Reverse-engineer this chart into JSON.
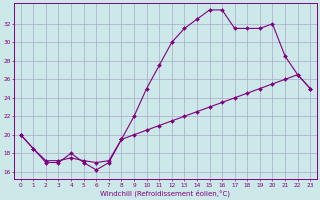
{
  "xlabel": "Windchill (Refroidissement éolien,°C)",
  "background_color": "#cce8e8",
  "line_color": "#800080",
  "grid_color": "#aaaacc",
  "x_ticks": [
    0,
    1,
    2,
    3,
    4,
    5,
    6,
    7,
    8,
    9,
    10,
    11,
    12,
    13,
    14,
    15,
    16,
    17,
    18,
    19,
    20,
    21,
    22,
    23
  ],
  "y_ticks": [
    16,
    18,
    20,
    22,
    24,
    26,
    28,
    30,
    32
  ],
  "ylim": [
    15.2,
    34.2
  ],
  "xlim": [
    -0.5,
    23.5
  ],
  "series1_x": [
    0,
    1,
    2,
    3,
    4,
    5,
    6,
    7,
    8,
    9,
    10,
    11,
    12,
    13,
    14,
    15,
    16,
    17,
    18,
    19,
    20,
    21,
    22,
    23
  ],
  "series1_y": [
    20.0,
    18.5,
    17.0,
    17.0,
    18.0,
    17.0,
    16.2,
    17.0,
    19.5,
    22.0,
    25.0,
    27.5,
    30.0,
    31.5,
    32.5,
    33.5,
    33.5,
    31.5,
    31.5,
    31.5,
    32.0,
    28.5,
    26.5,
    25.0
  ],
  "series2_x": [
    0,
    1,
    2,
    3,
    4,
    5,
    6,
    7,
    8,
    9,
    10,
    11,
    12,
    13,
    14,
    15,
    16,
    17,
    18,
    19,
    20,
    21,
    22,
    23
  ],
  "series2_y": [
    20.0,
    18.5,
    17.2,
    17.2,
    17.5,
    17.2,
    17.0,
    17.2,
    19.5,
    20.0,
    20.5,
    21.0,
    21.5,
    22.0,
    22.5,
    23.0,
    23.5,
    24.0,
    24.5,
    25.0,
    25.5,
    26.0,
    26.5,
    25.0
  ],
  "marker_size": 2.0,
  "line_width": 0.8,
  "tick_fontsize": 4.2,
  "label_fontsize": 5.0
}
